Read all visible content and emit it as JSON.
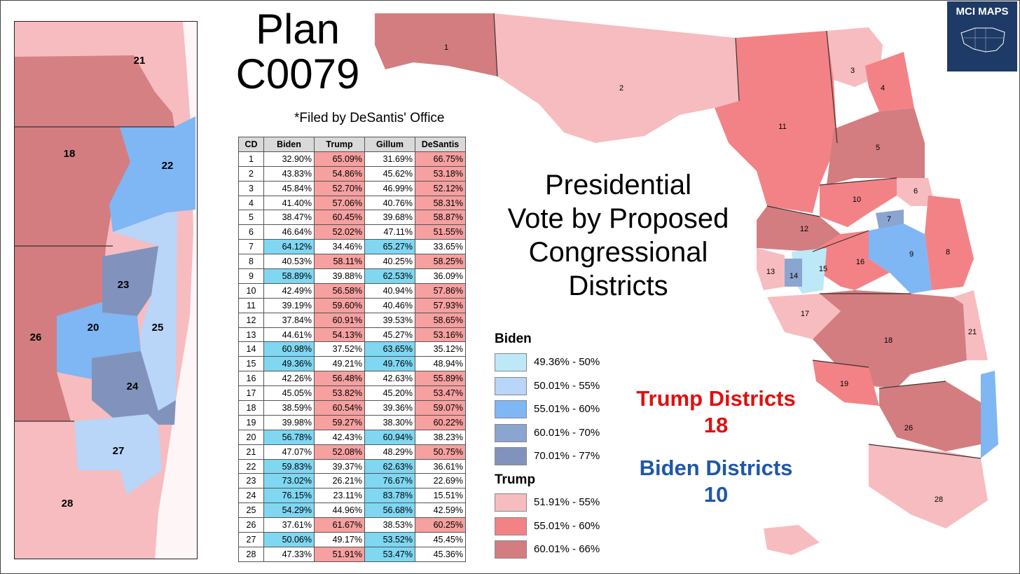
{
  "title": {
    "line1": "Plan",
    "line2": "C0079"
  },
  "filed_note": "*Filed by DeSantis' Office",
  "center_title": [
    "Presidential",
    "Vote by Proposed",
    "Congressional",
    "Districts"
  ],
  "logo": {
    "text": "MCI MAPS",
    "icon": "us-map-icon"
  },
  "table": {
    "headers": [
      "CD",
      "Biden",
      "Trump",
      "Gillum",
      "DeSantis"
    ],
    "rows": [
      {
        "cd": "1",
        "biden": "32.90%",
        "trump": "65.09%",
        "gillum": "31.69%",
        "desantis": "66.75%"
      },
      {
        "cd": "2",
        "biden": "43.83%",
        "trump": "54.86%",
        "gillum": "45.62%",
        "desantis": "53.18%"
      },
      {
        "cd": "3",
        "biden": "45.84%",
        "trump": "52.70%",
        "gillum": "46.99%",
        "desantis": "52.12%"
      },
      {
        "cd": "4",
        "biden": "41.40%",
        "trump": "57.06%",
        "gillum": "40.76%",
        "desantis": "58.31%"
      },
      {
        "cd": "5",
        "biden": "38.47%",
        "trump": "60.45%",
        "gillum": "39.68%",
        "desantis": "58.87%"
      },
      {
        "cd": "6",
        "biden": "46.64%",
        "trump": "52.02%",
        "gillum": "47.11%",
        "desantis": "51.55%"
      },
      {
        "cd": "7",
        "biden": "64.12%",
        "trump": "34.46%",
        "gillum": "65.27%",
        "desantis": "33.65%"
      },
      {
        "cd": "8",
        "biden": "40.53%",
        "trump": "58.11%",
        "gillum": "40.25%",
        "desantis": "58.25%"
      },
      {
        "cd": "9",
        "biden": "58.89%",
        "trump": "39.88%",
        "gillum": "62.53%",
        "desantis": "36.09%"
      },
      {
        "cd": "10",
        "biden": "42.49%",
        "trump": "56.58%",
        "gillum": "40.94%",
        "desantis": "57.86%"
      },
      {
        "cd": "11",
        "biden": "39.19%",
        "trump": "59.60%",
        "gillum": "40.46%",
        "desantis": "57.93%"
      },
      {
        "cd": "12",
        "biden": "37.84%",
        "trump": "60.91%",
        "gillum": "39.53%",
        "desantis": "58.65%"
      },
      {
        "cd": "13",
        "biden": "44.61%",
        "trump": "54.13%",
        "gillum": "45.27%",
        "desantis": "53.16%"
      },
      {
        "cd": "14",
        "biden": "60.98%",
        "trump": "37.52%",
        "gillum": "63.65%",
        "desantis": "35.12%"
      },
      {
        "cd": "15",
        "biden": "49.36%",
        "trump": "49.21%",
        "gillum": "49.76%",
        "desantis": "48.94%"
      },
      {
        "cd": "16",
        "biden": "42.26%",
        "trump": "56.48%",
        "gillum": "42.63%",
        "desantis": "55.89%"
      },
      {
        "cd": "17",
        "biden": "45.05%",
        "trump": "53.82%",
        "gillum": "45.20%",
        "desantis": "53.47%"
      },
      {
        "cd": "18",
        "biden": "38.59%",
        "trump": "60.54%",
        "gillum": "39.36%",
        "desantis": "59.07%"
      },
      {
        "cd": "19",
        "biden": "39.98%",
        "trump": "59.27%",
        "gillum": "38.30%",
        "desantis": "60.22%"
      },
      {
        "cd": "20",
        "biden": "56.78%",
        "trump": "42.43%",
        "gillum": "60.94%",
        "desantis": "38.23%"
      },
      {
        "cd": "21",
        "biden": "47.07%",
        "trump": "52.08%",
        "gillum": "48.29%",
        "desantis": "50.75%"
      },
      {
        "cd": "22",
        "biden": "59.83%",
        "trump": "39.37%",
        "gillum": "62.63%",
        "desantis": "36.61%"
      },
      {
        "cd": "23",
        "biden": "73.02%",
        "trump": "26.21%",
        "gillum": "76.67%",
        "desantis": "22.69%"
      },
      {
        "cd": "24",
        "biden": "76.15%",
        "trump": "23.11%",
        "gillum": "83.78%",
        "desantis": "15.51%"
      },
      {
        "cd": "25",
        "biden": "54.29%",
        "trump": "44.96%",
        "gillum": "56.68%",
        "desantis": "42.59%"
      },
      {
        "cd": "26",
        "biden": "37.61%",
        "trump": "61.67%",
        "gillum": "38.53%",
        "desantis": "60.25%"
      },
      {
        "cd": "27",
        "biden": "50.06%",
        "trump": "49.17%",
        "gillum": "53.52%",
        "desantis": "45.45%"
      },
      {
        "cd": "28",
        "biden": "47.33%",
        "trump": "51.91%",
        "gillum": "53.47%",
        "desantis": "45.36%"
      }
    ]
  },
  "legend": {
    "biden_title": "Biden",
    "biden": [
      {
        "label": "49.36% - 50%",
        "color": "#bde8f8"
      },
      {
        "label": "50.01% - 55%",
        "color": "#b9d5f7"
      },
      {
        "label": "55.01% - 60%",
        "color": "#7fb6f4"
      },
      {
        "label": "60.01% - 70%",
        "color": "#8aa5cf"
      },
      {
        "label": "70.01% - 77%",
        "color": "#8193bd"
      }
    ],
    "trump_title": "Trump",
    "trump": [
      {
        "label": "51.91% - 55%",
        "color": "#f7bcbf"
      },
      {
        "label": "55.01% - 60%",
        "color": "#f38286"
      },
      {
        "label": "60.01% - 66%",
        "color": "#d37d80"
      }
    ]
  },
  "counts": {
    "trump_label": "Trump Districts",
    "trump_value": "18",
    "biden_label": "Biden Districts",
    "biden_value": "10"
  },
  "inset_labels": {
    "d21": "21",
    "d18": "18",
    "d22": "22",
    "d23": "23",
    "d20": "20",
    "d25": "25",
    "d26": "26",
    "d24": "24",
    "d27": "27",
    "d28": "28"
  },
  "map_labels": {
    "d1": "1",
    "d2": "2",
    "d3": "3",
    "d4": "4",
    "d5": "5",
    "d6": "6",
    "d7": "7",
    "d8": "8",
    "d9": "9",
    "d10": "10",
    "d11": "11",
    "d12": "12",
    "d13": "13",
    "d14": "14",
    "d15": "15",
    "d16": "16",
    "d17": "17",
    "d18": "18",
    "d19": "19",
    "d21": "21",
    "d26": "26",
    "d28": "28"
  },
  "colors": {
    "trump_light": "#f7bcbf",
    "trump_mid": "#f38286",
    "trump_dark": "#d37d80",
    "biden_light": "#bde8f8",
    "biden_mid": "#7fb6f4",
    "biden_dark": "#8193bd",
    "trump_text": "#e01010",
    "biden_text": "#1f57a8"
  }
}
